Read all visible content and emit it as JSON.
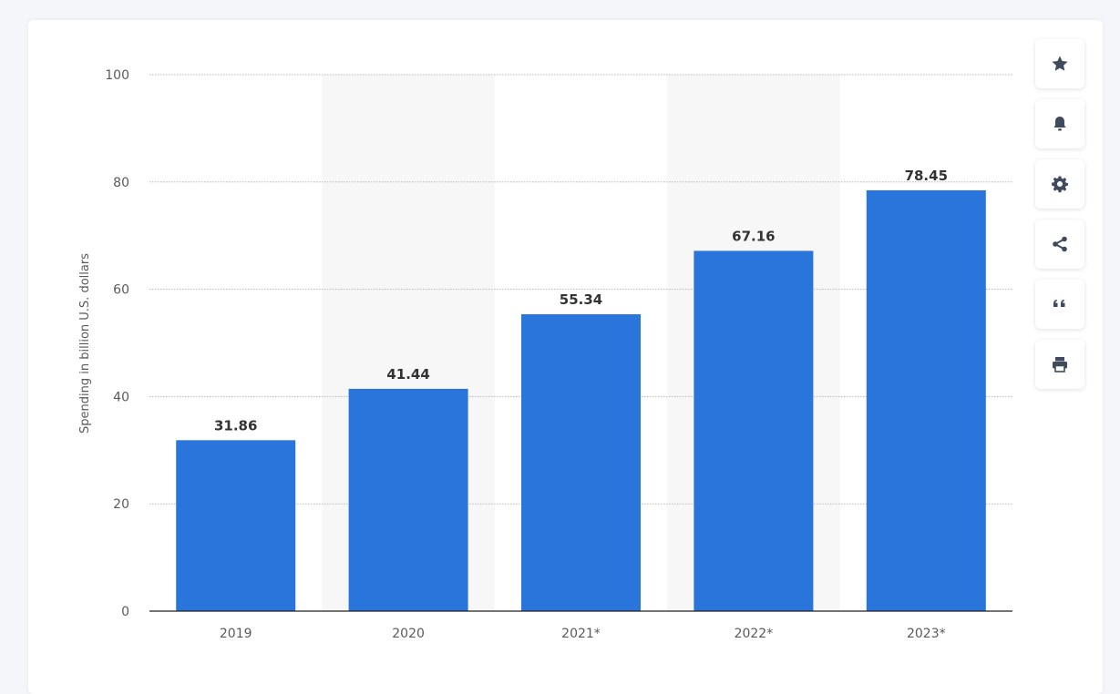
{
  "chart_data": {
    "type": "bar",
    "categories": [
      "2019",
      "2020",
      "2021*",
      "2022*",
      "2023*"
    ],
    "values": [
      31.86,
      41.44,
      55.34,
      67.16,
      78.45
    ],
    "value_labels": [
      "31.86",
      "41.44",
      "55.34",
      "67.16",
      "78.45"
    ],
    "ylabel": "Spending in billion U.S. dollars",
    "xlabel": "",
    "ylim": [
      0,
      100
    ],
    "yticks": [
      "0",
      "20",
      "40",
      "60",
      "80",
      "100"
    ],
    "bar_color": "#2a75dc",
    "band_color": "#f7f7f8",
    "grid": true
  },
  "toolbar": {
    "icons": [
      "star-icon",
      "bell-icon",
      "gear-icon",
      "share-icon",
      "quote-icon",
      "print-icon"
    ]
  }
}
